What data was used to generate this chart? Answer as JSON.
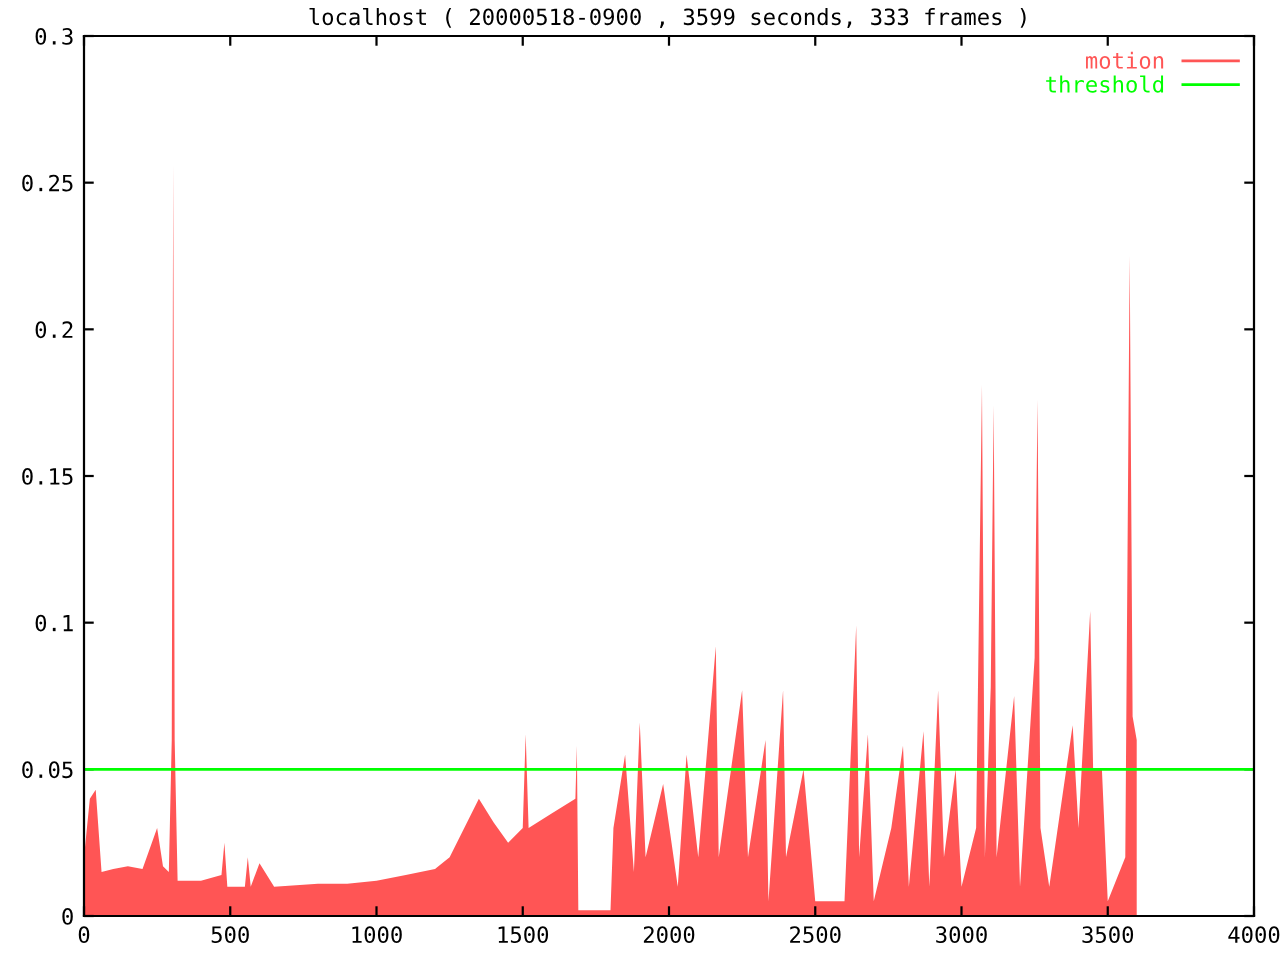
{
  "chart_data": {
    "type": "area",
    "title": "localhost ( 20000518-0900 , 3599 seconds, 333 frames )",
    "x": [
      0,
      20,
      40,
      60,
      100,
      150,
      200,
      250,
      270,
      290,
      300,
      305,
      310,
      320,
      400,
      470,
      480,
      490,
      550,
      560,
      570,
      600,
      650,
      800,
      900,
      1000,
      1100,
      1200,
      1250,
      1300,
      1350,
      1400,
      1450,
      1500,
      1510,
      1520,
      1600,
      1680,
      1685,
      1690,
      1800,
      1810,
      1850,
      1880,
      1900,
      1920,
      1980,
      2030,
      2060,
      2100,
      2160,
      2170,
      2250,
      2270,
      2330,
      2340,
      2390,
      2400,
      2460,
      2500,
      2600,
      2640,
      2650,
      2680,
      2700,
      2760,
      2800,
      2820,
      2870,
      2890,
      2920,
      2940,
      2980,
      3000,
      3050,
      3070,
      3080,
      3100,
      3110,
      3120,
      3180,
      3200,
      3250,
      3260,
      3270,
      3300,
      3380,
      3400,
      3440,
      3450,
      3480,
      3500,
      3560,
      3575,
      3585,
      3599
    ],
    "series": [
      {
        "name": "motion",
        "color": "#ff5555",
        "values": [
          0.02,
          0.04,
          0.043,
          0.015,
          0.016,
          0.017,
          0.016,
          0.03,
          0.017,
          0.015,
          0.06,
          0.256,
          0.06,
          0.012,
          0.012,
          0.014,
          0.025,
          0.01,
          0.01,
          0.02,
          0.01,
          0.018,
          0.01,
          0.011,
          0.011,
          0.012,
          0.014,
          0.016,
          0.02,
          0.03,
          0.04,
          0.032,
          0.025,
          0.03,
          0.062,
          0.03,
          0.035,
          0.04,
          0.058,
          0.002,
          0.002,
          0.03,
          0.055,
          0.015,
          0.066,
          0.02,
          0.045,
          0.01,
          0.055,
          0.02,
          0.092,
          0.02,
          0.077,
          0.02,
          0.06,
          0.005,
          0.077,
          0.02,
          0.05,
          0.005,
          0.005,
          0.099,
          0.02,
          0.062,
          0.005,
          0.03,
          0.058,
          0.01,
          0.063,
          0.01,
          0.077,
          0.02,
          0.05,
          0.01,
          0.03,
          0.181,
          0.02,
          0.078,
          0.174,
          0.02,
          0.075,
          0.01,
          0.088,
          0.176,
          0.03,
          0.01,
          0.065,
          0.03,
          0.104,
          0.05,
          0.05,
          0.005,
          0.02,
          0.225,
          0.068,
          0.06
        ]
      }
    ],
    "ref_lines": [
      {
        "axis": "y",
        "value": 0.05,
        "label": "threshold",
        "color": "#00ff00"
      }
    ],
    "xlim": [
      0,
      4000
    ],
    "ylim": [
      0,
      0.3
    ],
    "xticks": [
      0,
      500,
      1000,
      1500,
      2000,
      2500,
      3000,
      3500,
      4000
    ],
    "yticks": [
      0,
      0.05,
      0.1,
      0.15,
      0.2,
      0.25,
      0.3
    ],
    "grid": false,
    "legend": "top right"
  }
}
